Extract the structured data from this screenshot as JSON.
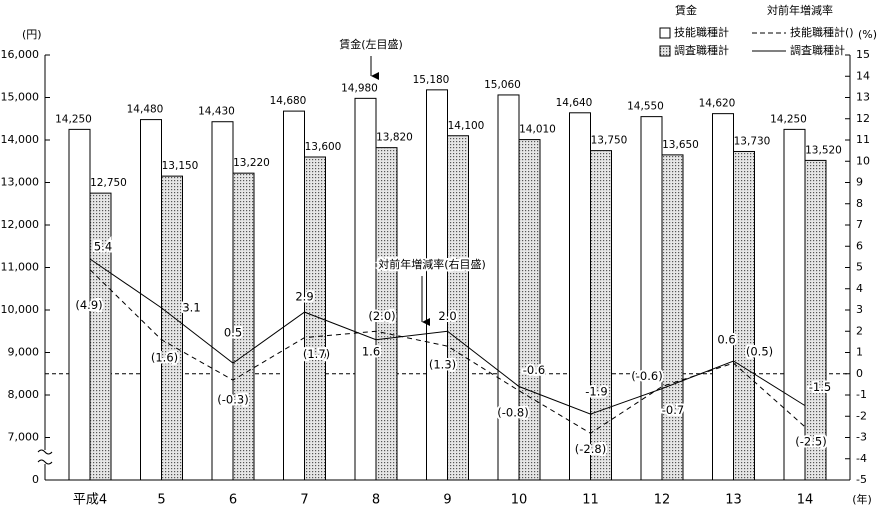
{
  "chart_data": {
    "type": "bar",
    "y_unit": "(円)",
    "y2_unit": "(%)",
    "x_unit": "(年)",
    "legend_titles": [
      "賃金",
      "対前年増減率"
    ],
    "annotations": [
      {
        "text": "賃金(左目盛)"
      },
      {
        "text": "対前年増減率(右目盛)"
      }
    ],
    "categories": [
      "平成4",
      "5",
      "6",
      "7",
      "8",
      "9",
      "10",
      "11",
      "12",
      "13",
      "14"
    ],
    "ylim": [
      0,
      16000
    ],
    "y_break": [
      0,
      7000
    ],
    "yticks": [
      0,
      {
        "value": 7000,
        "label": "7,000"
      },
      {
        "value": 8000,
        "label": "8,000"
      },
      {
        "value": 9000,
        "label": "9,000"
      },
      {
        "value": 10000,
        "label": "10,000"
      },
      {
        "value": 11000,
        "label": "11,000"
      },
      {
        "value": 12000,
        "label": "12,000"
      },
      {
        "value": 13000,
        "label": "13,000"
      },
      {
        "value": 14000,
        "label": "14,000"
      },
      {
        "value": 15000,
        "label": "15,000"
      },
      {
        "value": 16000,
        "label": "16,000"
      }
    ],
    "y2lim": [
      -5,
      15
    ],
    "y2ticks": [
      -5,
      -4,
      -3,
      -2,
      -1,
      0,
      1,
      2,
      3,
      4,
      5,
      6,
      7,
      8,
      9,
      10,
      11,
      12,
      13,
      14,
      15
    ],
    "zero_line": true,
    "series": [
      {
        "name": "技能職種計",
        "type": "bar",
        "color": "#ffffff",
        "values": [
          14250,
          14480,
          14430,
          14680,
          14980,
          15180,
          15060,
          14640,
          14550,
          14620,
          14250
        ],
        "value_labels": [
          "14,250",
          "14,480",
          "14,430",
          "14,680",
          "14,980",
          "15,180",
          "15,060",
          "14,640",
          "14,550",
          "14,620",
          "14,250"
        ]
      },
      {
        "name": "調査職種計",
        "type": "bar",
        "color": "#8c8c8c",
        "hatch": true,
        "values": [
          12750,
          13150,
          13220,
          13600,
          13820,
          14100,
          14010,
          13750,
          13650,
          13730,
          13520
        ],
        "value_labels": [
          "12,750",
          "13,150",
          "13,220",
          "13,600",
          "13,820",
          "14,100",
          "14,010",
          "13,750",
          "13,650",
          "13,730",
          "13,520"
        ]
      },
      {
        "name": "技能職種計()",
        "type": "line",
        "axis": "y2",
        "style": "dashed",
        "color": "#000000",
        "values": [
          4.9,
          1.6,
          -0.3,
          1.7,
          2.0,
          1.3,
          -0.8,
          -2.8,
          -0.6,
          0.5,
          -2.5
        ],
        "value_labels": [
          "(4.9)",
          "(1.6)",
          "(-0.3)",
          "(1.7)",
          "(2.0)",
          "(1.3)",
          "(-0.8)",
          "(-2.8)",
          "(-0.6)",
          "(0.5)",
          "(-2.5)"
        ]
      },
      {
        "name": "調査職種計",
        "type": "line",
        "axis": "y2",
        "style": "solid",
        "color": "#000000",
        "values": [
          5.4,
          3.1,
          0.5,
          2.9,
          1.6,
          2.0,
          -0.6,
          -1.9,
          -0.7,
          0.6,
          -1.5
        ],
        "value_labels": [
          "5.4",
          "3.1",
          "0.5",
          "2.9",
          "1.6",
          "2.0",
          "-0.6",
          "-1.9",
          "-0.7",
          "0.6",
          "-1.5"
        ]
      }
    ]
  }
}
